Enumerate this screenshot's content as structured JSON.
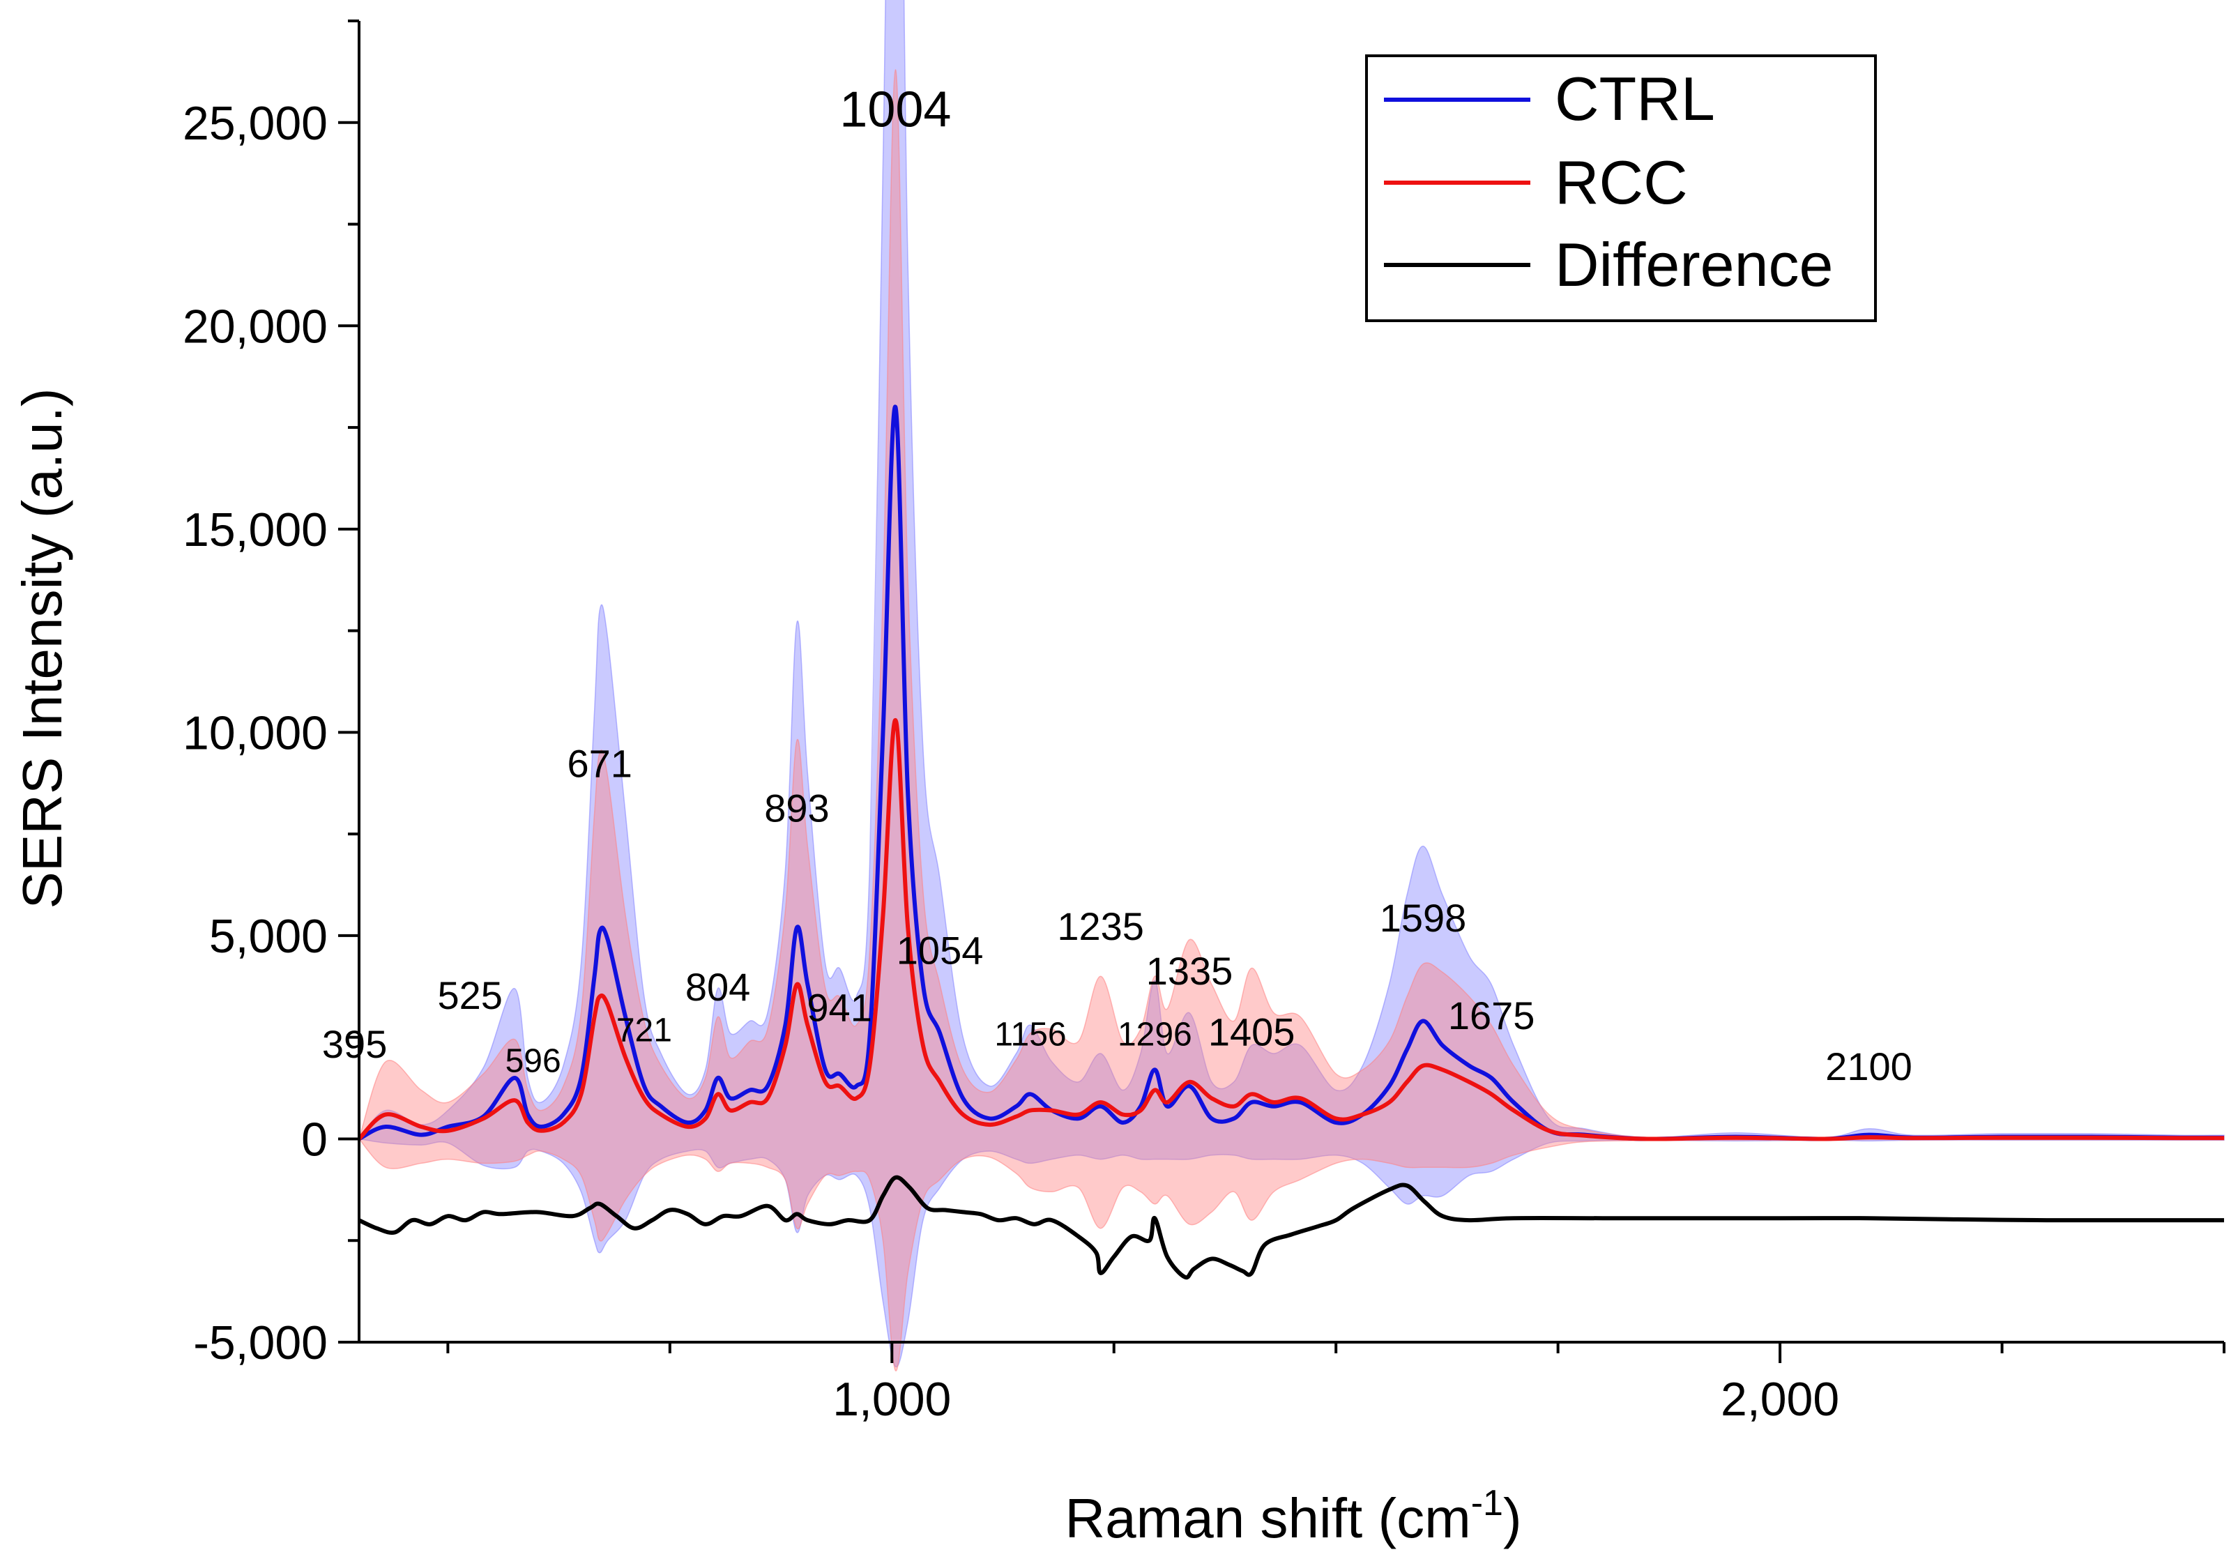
{
  "chart_data": {
    "type": "line",
    "xlabel_main": "Raman shift (cm",
    "xlabel_sup": "-1",
    "xlabel_end": ")",
    "ylabel": "SERS Intensity (a.u.)",
    "xlim": [
      400,
      2500
    ],
    "ylim": [
      -5000,
      27500
    ],
    "x_ticks": [
      1000,
      2000
    ],
    "x_tick_labels": [
      "1,000",
      "2,000"
    ],
    "y_ticks": [
      -5000,
      0,
      5000,
      10000,
      15000,
      20000,
      25000
    ],
    "y_tick_labels": [
      "-5,000",
      "0",
      "5,000",
      "10,000",
      "15,000",
      "20,000",
      "25,000"
    ],
    "legend_position": "top-right",
    "series": [
      {
        "name": "CTRL",
        "color": "#1010dd",
        "band_color": "#8080ff",
        "x": [
          400,
          430,
          470,
          500,
          540,
          575,
          590,
          605,
          630,
          650,
          665,
          671,
          680,
          700,
          721,
          740,
          770,
          790,
          804,
          818,
          840,
          860,
          880,
          893,
          905,
          925,
          941,
          960,
          975,
          990,
          1004,
          1018,
          1035,
          1054,
          1080,
          1110,
          1140,
          1156,
          1180,
          1210,
          1235,
          1260,
          1280,
          1296,
          1310,
          1335,
          1360,
          1385,
          1405,
          1430,
          1460,
          1500,
          1530,
          1560,
          1580,
          1598,
          1620,
          1650,
          1675,
          1700,
          1740,
          1780,
          1850,
          1950,
          2050,
          2100,
          2150,
          2250,
          2350,
          2450,
          2500
        ],
        "y": [
          0,
          300,
          100,
          300,
          550,
          1500,
          600,
          300,
          600,
          1500,
          4000,
          5100,
          4900,
          3000,
          1300,
          800,
          400,
          700,
          1500,
          1000,
          1200,
          1300,
          2800,
          5200,
          3800,
          1700,
          1600,
          1300,
          2500,
          10000,
          18000,
          8500,
          3800,
          2600,
          1000,
          500,
          800,
          1100,
          700,
          500,
          800,
          400,
          800,
          1700,
          800,
          1300,
          500,
          500,
          900,
          800,
          900,
          400,
          600,
          1300,
          2200,
          2900,
          2300,
          1800,
          1500,
          900,
          200,
          100,
          0,
          50,
          0,
          100,
          30,
          50,
          50,
          30,
          30
        ],
        "band": [
          0,
          400,
          250,
          400,
          1200,
          2200,
          900,
          600,
          1200,
          2800,
          6500,
          7900,
          7400,
          5000,
          2200,
          1300,
          700,
          1000,
          2200,
          1600,
          1700,
          1800,
          3800,
          7500,
          5200,
          2600,
          2600,
          2200,
          4200,
          14000,
          23600,
          13000,
          5800,
          3800,
          1500,
          800,
          1300,
          1700,
          1200,
          900,
          1300,
          800,
          1300,
          2200,
          1300,
          1800,
          900,
          900,
          1400,
          1300,
          1400,
          800,
          1200,
          2500,
          3800,
          4300,
          3700,
          2700,
          2300,
          1400,
          300,
          150,
          30,
          100,
          30,
          150,
          60,
          80,
          80,
          60,
          60
        ]
      },
      {
        "name": "RCC",
        "color": "#ee1111",
        "band_color": "#ff8080",
        "x": [
          400,
          430,
          470,
          500,
          540,
          575,
          590,
          605,
          630,
          650,
          665,
          671,
          680,
          700,
          721,
          740,
          770,
          790,
          804,
          818,
          840,
          860,
          880,
          893,
          905,
          925,
          941,
          960,
          975,
          990,
          1004,
          1018,
          1035,
          1054,
          1080,
          1110,
          1140,
          1156,
          1180,
          1210,
          1235,
          1260,
          1280,
          1296,
          1310,
          1335,
          1360,
          1385,
          1405,
          1430,
          1460,
          1500,
          1530,
          1560,
          1580,
          1598,
          1620,
          1650,
          1675,
          1700,
          1740,
          1780,
          1850,
          1950,
          2050,
          2100,
          2150,
          2250,
          2350,
          2450,
          2500
        ],
        "y": [
          0,
          600,
          300,
          200,
          500,
          950,
          400,
          200,
          400,
          1100,
          3000,
          3500,
          3300,
          2000,
          1000,
          600,
          300,
          500,
          1100,
          700,
          900,
          1000,
          2300,
          3800,
          2800,
          1400,
          1300,
          1000,
          1800,
          5500,
          10300,
          5200,
          2300,
          1400,
          600,
          350,
          550,
          700,
          700,
          600,
          900,
          600,
          700,
          1200,
          900,
          1400,
          1000,
          800,
          1100,
          900,
          1000,
          500,
          600,
          900,
          1400,
          1800,
          1700,
          1400,
          1100,
          700,
          200,
          80,
          0,
          30,
          0,
          40,
          20,
          30,
          30,
          20,
          20
        ],
        "band": [
          0,
          1300,
          900,
          700,
          1100,
          1500,
          800,
          500,
          900,
          2000,
          5000,
          6000,
          5600,
          3500,
          1900,
          1200,
          700,
          1000,
          1900,
          1300,
          1500,
          1700,
          3300,
          6000,
          4400,
          2300,
          2200,
          1800,
          2800,
          8000,
          16000,
          8500,
          3800,
          2400,
          1100,
          800,
          1400,
          1900,
          2000,
          1800,
          3100,
          1800,
          2000,
          2800,
          2300,
          3500,
          2800,
          2100,
          3100,
          2200,
          2000,
          1100,
          1100,
          1500,
          2100,
          2500,
          2400,
          2100,
          1700,
          1100,
          400,
          150,
          40,
          60,
          30,
          60,
          40,
          50,
          50,
          40,
          40
        ]
      },
      {
        "name": "Difference",
        "color": "#000000",
        "x": [
          400,
          420,
          440,
          460,
          480,
          500,
          520,
          540,
          560,
          600,
          640,
          660,
          671,
          690,
          710,
          730,
          750,
          770,
          790,
          810,
          830,
          860,
          880,
          893,
          905,
          930,
          950,
          975,
          990,
          1004,
          1020,
          1040,
          1060,
          1080,
          1100,
          1120,
          1140,
          1160,
          1180,
          1210,
          1230,
          1235,
          1250,
          1270,
          1290,
          1296,
          1310,
          1330,
          1340,
          1360,
          1380,
          1395,
          1405,
          1420,
          1450,
          1480,
          1500,
          1520,
          1560,
          1580,
          1600,
          1620,
          1650,
          1700,
          1800,
          1900,
          2000,
          2100,
          2200,
          2300,
          2400,
          2500
        ],
        "y": [
          -2000,
          -2200,
          -2300,
          -2000,
          -2100,
          -1900,
          -2000,
          -1800,
          -1850,
          -1800,
          -1900,
          -1700,
          -1600,
          -1900,
          -2200,
          -2000,
          -1750,
          -1850,
          -2100,
          -1900,
          -1900,
          -1650,
          -2000,
          -1850,
          -2000,
          -2100,
          -2000,
          -2000,
          -1400,
          -950,
          -1200,
          -1700,
          -1750,
          -1800,
          -1850,
          -2000,
          -1950,
          -2100,
          -2000,
          -2400,
          -2800,
          -3300,
          -2900,
          -2400,
          -2500,
          -1950,
          -2900,
          -3400,
          -3200,
          -2950,
          -3100,
          -3250,
          -3300,
          -2600,
          -2350,
          -2150,
          -2000,
          -1700,
          -1250,
          -1150,
          -1550,
          -1900,
          -2000,
          -1950,
          -1950,
          -1950,
          -1950,
          -1950,
          -1980,
          -2000,
          -2000,
          -2000
        ]
      }
    ],
    "annotations": [
      {
        "text": "395",
        "x": 395,
        "y": 2000
      },
      {
        "text": "525",
        "x": 525,
        "y": 3200
      },
      {
        "text": "596",
        "x": 596,
        "y": 1650
      },
      {
        "text": "671",
        "x": 671,
        "y": 8900
      },
      {
        "text": "721",
        "x": 721,
        "y": 2400
      },
      {
        "text": "804",
        "x": 804,
        "y": 3400
      },
      {
        "text": "893",
        "x": 893,
        "y": 7800
      },
      {
        "text": "941",
        "x": 941,
        "y": 2900
      },
      {
        "text": "1004",
        "x": 1004,
        "y": 24900
      },
      {
        "text": "1054",
        "x": 1054,
        "y": 4300
      },
      {
        "text": "1156",
        "x": 1156,
        "y": 2300
      },
      {
        "text": "1235",
        "x": 1235,
        "y": 4900
      },
      {
        "text": "1296",
        "x": 1296,
        "y": 2300
      },
      {
        "text": "1335",
        "x": 1335,
        "y": 3800
      },
      {
        "text": "1405",
        "x": 1405,
        "y": 2300
      },
      {
        "text": "1598",
        "x": 1598,
        "y": 5100
      },
      {
        "text": "1675",
        "x": 1675,
        "y": 2700
      },
      {
        "text": "2100",
        "x": 2100,
        "y": 1450
      }
    ]
  }
}
